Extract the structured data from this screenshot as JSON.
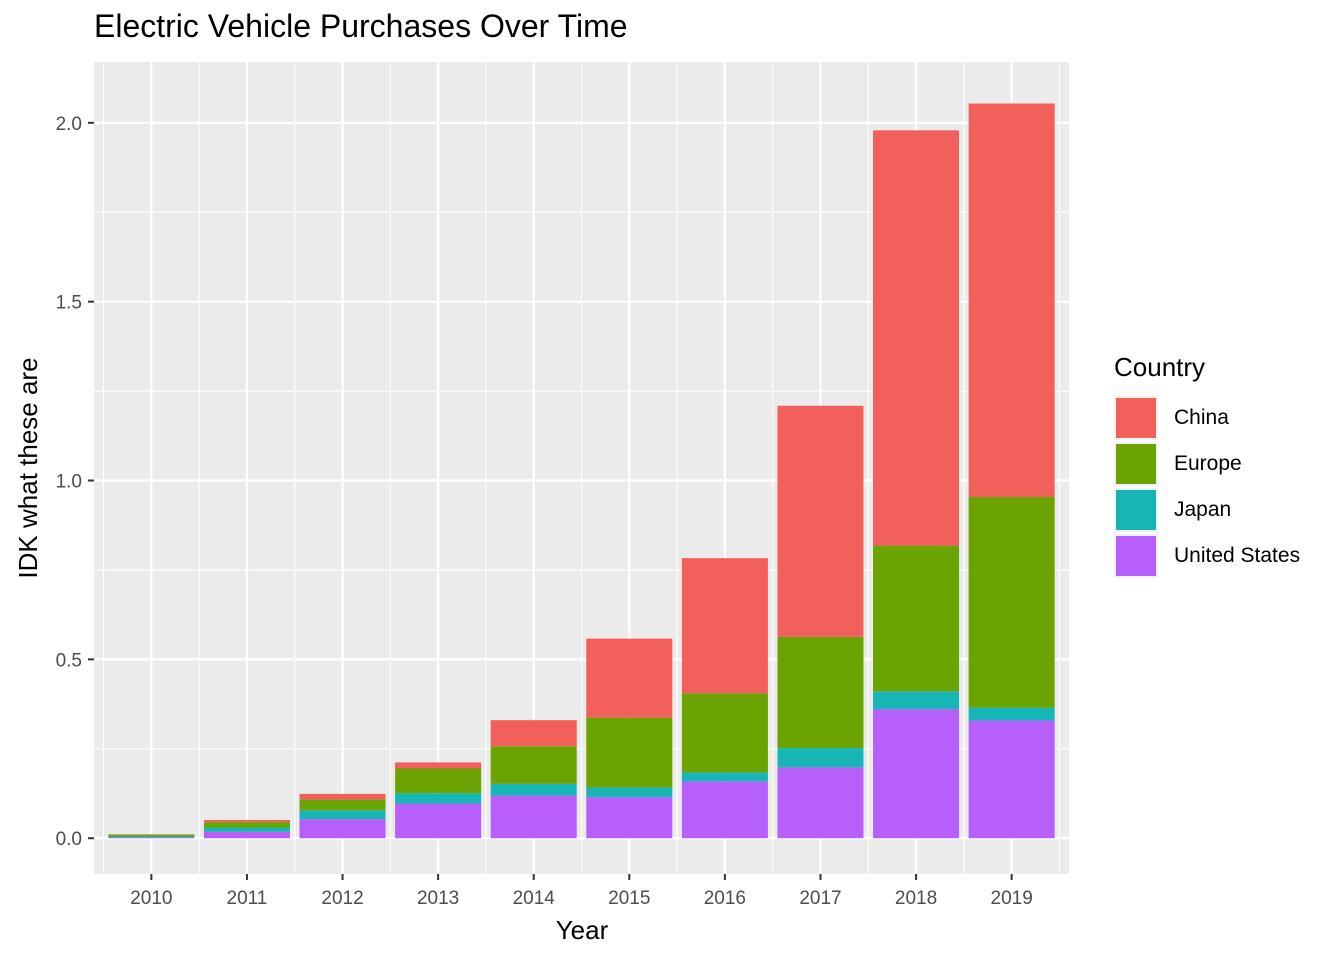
{
  "chart_data": {
    "type": "bar",
    "stacked": true,
    "title": "Electric Vehicle Purchases Over Time",
    "xlabel": "Year",
    "ylabel": "IDK what these are",
    "categories": [
      "2010",
      "2011",
      "2012",
      "2013",
      "2014",
      "2015",
      "2016",
      "2017",
      "2018",
      "2019"
    ],
    "ylim": [
      -0.1,
      2.17
    ],
    "yticks": [
      0.0,
      0.5,
      1.0,
      1.5,
      2.0
    ],
    "ytick_labels": [
      "0.0",
      "0.5",
      "1.0",
      "1.5",
      "2.0"
    ],
    "grid": true,
    "legend_title": "Country",
    "legend_position": "right",
    "series": [
      {
        "name": "United States",
        "color": "#b75ffb",
        "values": [
          0.002,
          0.018,
          0.053,
          0.097,
          0.119,
          0.115,
          0.159,
          0.198,
          0.361,
          0.329
        ]
      },
      {
        "name": "Japan",
        "color": "#17b5b5",
        "values": [
          0.003,
          0.012,
          0.025,
          0.029,
          0.033,
          0.027,
          0.025,
          0.054,
          0.05,
          0.036
        ]
      },
      {
        "name": "Europe",
        "color": "#6ba300",
        "values": [
          0.005,
          0.015,
          0.03,
          0.069,
          0.105,
          0.195,
          0.221,
          0.311,
          0.407,
          0.589
        ]
      },
      {
        "name": "China",
        "color": "#f2605c",
        "values": [
          0.001,
          0.006,
          0.016,
          0.017,
          0.073,
          0.221,
          0.378,
          0.646,
          1.161,
          1.1
        ]
      }
    ],
    "legend_order": [
      "China",
      "Europe",
      "Japan",
      "United States"
    ]
  }
}
